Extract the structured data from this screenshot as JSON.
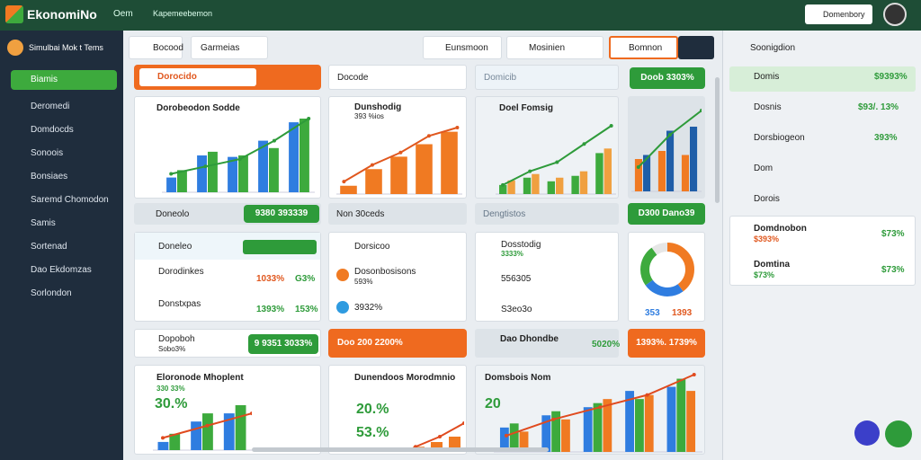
{
  "header": {
    "logo": "EkonomiNo",
    "menu": [
      "Oem",
      "Kapemeebemon"
    ],
    "button": "Domenbory"
  },
  "sidebar": {
    "items": [
      "Biamis",
      "Deromedi",
      "Domdocds",
      "Sonoois",
      "Bonsiaes",
      "Saremd Chomodon",
      "Samis",
      "Sortenad",
      "Dao Ekdomzas",
      "Sorlondon"
    ]
  },
  "toolbar": {
    "search": "Bocood",
    "input": "Garmeias",
    "dropdown_1": "Eunsmoon",
    "dropdown_2": "Mosinien",
    "button": "Bomnon"
  },
  "strip_1": {
    "a": "Dorocido",
    "b": "Docode",
    "c": "Domicib",
    "d": "Doob",
    "d_value": "3303%"
  },
  "chart_cards": {
    "a_title": "Dorobeodon Sodde",
    "b_title": "Dunshodig",
    "b_sub": "393 %ios",
    "c_title": "Doel Fomsig"
  },
  "strip_2": {
    "a": "Doneolo",
    "a_button": "9380 393339",
    "b": "Non 30ceds",
    "c": "Dengtistos",
    "d_button": "D300 Dano39"
  },
  "list_cards": {
    "a_title": "Doneleo",
    "a_rows": [
      [
        "Dorodinkes",
        "1033%",
        "G3%"
      ],
      [
        "Donstxpas",
        "1393%",
        "153%"
      ]
    ],
    "b_rows": [
      [
        "Dorsicoo",
        ""
      ],
      [
        "Dosonbosisons",
        "593%"
      ],
      [
        "3932%",
        ""
      ]
    ],
    "c_rows": [
      [
        "Dosstodig",
        "3333%"
      ],
      [
        "556305",
        ""
      ],
      [
        "S3eo3o",
        ""
      ]
    ],
    "donut_labels": [
      "353",
      "1393"
    ]
  },
  "strip_3": {
    "a": "Dopoboh",
    "a_sub": "Sobo3%",
    "a_button": "9 9351 3033%",
    "b_button": "Doo 200 2200%",
    "c": "Dao Dhondbe",
    "c_value": "5020%",
    "d_button": "1393%. 1739%"
  },
  "bottom_cards": {
    "a_title": "Eloronode Mhoplent",
    "a_sub": "330 33%",
    "a_big": "30.%",
    "b_title": "Dunendoos Morodmnio",
    "b_big_1": "20.%",
    "b_big_2": "53.%",
    "c_title": "Domsbois Nom",
    "c_big": "20"
  },
  "right_panel": {
    "header": "Soonigdion",
    "rows": [
      [
        "Domis",
        "$9393%"
      ],
      [
        "Dosnis",
        "$93/. 13%"
      ],
      [
        "Dorsbiogeon",
        "393%"
      ],
      [
        "Dom",
        ""
      ],
      [
        "Dorois",
        ""
      ]
    ],
    "card_rows": [
      [
        "Domdnobon",
        "$393%",
        "$73%"
      ],
      [
        "Domtina",
        "$73%",
        "$73%"
      ]
    ]
  },
  "charts": [
    {
      "series": [
        {
          "color": "#2f7de0",
          "values": [
            20,
            50,
            48,
            70,
            95
          ]
        },
        {
          "color": "#3daa3d",
          "values": [
            30,
            55,
            50,
            60,
            100
          ]
        }
      ],
      "trend": [
        25,
        35,
        45,
        70,
        100
      ],
      "trend_color": "#2e9b3a"
    },
    {
      "series": [
        {
          "color": "#f07a22",
          "values": [
            10,
            30,
            45,
            60,
            75
          ]
        }
      ],
      "trend": [
        15,
        35,
        50,
        70,
        80
      ],
      "trend_color": "#e0571e"
    },
    {
      "series": [
        {
          "color": "#3daa3d",
          "values": [
            10,
            18,
            14,
            20,
            45
          ]
        },
        {
          "color": "#f0a040",
          "values": [
            15,
            22,
            18,
            25,
            50
          ]
        }
      ],
      "trend": [
        10,
        25,
        35,
        55,
        75
      ],
      "trend_color": "#2e9b3a"
    },
    {
      "series": [
        {
          "color": "#f07a22",
          "values": [
            40,
            50,
            45
          ]
        },
        {
          "color": "#1f5ea8",
          "values": [
            45,
            75,
            80
          ]
        }
      ],
      "trend": [
        30,
        70,
        100
      ],
      "trend_color": "#2e9b3a"
    },
    {
      "series": [
        {
          "color": "#2f7de0",
          "values": [
            10,
            35,
            45
          ]
        },
        {
          "color": "#3daa3d",
          "values": [
            20,
            45,
            55
          ]
        }
      ],
      "trend": [
        15,
        30,
        45
      ],
      "trend_color": "#e04a1e"
    },
    {
      "series": [
        {
          "color": "#f07a22",
          "values": [
            5,
            12,
            20
          ]
        }
      ],
      "trend": [
        5,
        20,
        40
      ],
      "trend_color": "#e04a1e"
    },
    {
      "series": [
        {
          "color": "#2f7de0",
          "values": [
            30,
            45,
            55,
            75,
            80
          ]
        },
        {
          "color": "#3daa3d",
          "values": [
            35,
            50,
            60,
            65,
            90
          ]
        },
        {
          "color": "#f07a22",
          "values": [
            25,
            40,
            65,
            70,
            75
          ]
        }
      ],
      "trend": [
        20,
        40,
        55,
        70,
        95
      ],
      "trend_color": "#e04a1e"
    }
  ],
  "donut": {
    "values": [
      40,
      25,
      25,
      10
    ],
    "colors": [
      "#f07a22",
      "#2f7de0",
      "#3daa3d",
      "#e6e6e6"
    ]
  }
}
